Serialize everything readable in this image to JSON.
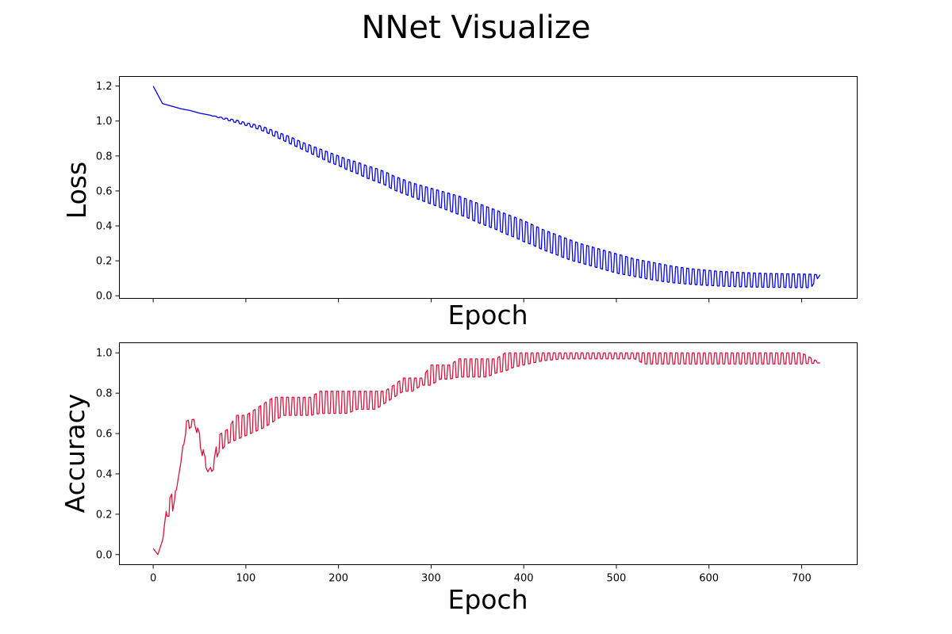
{
  "figure": {
    "title": "NNet Visualize"
  },
  "chart_data": [
    {
      "type": "line",
      "name": "loss-chart",
      "title": "",
      "xlabel": "Epoch",
      "ylabel": "Loss",
      "x_ticks": [
        0,
        100,
        200,
        300,
        400,
        500,
        600,
        700
      ],
      "x_tick_labels_visible": false,
      "y_ticks": [
        0.0,
        0.2,
        0.4,
        0.6,
        0.8,
        1.0,
        1.2
      ],
      "y_tick_labels": [
        "0.0",
        "0.2",
        "0.4",
        "0.6",
        "0.8",
        "1.0",
        "1.2"
      ],
      "xlim": [
        -36.5,
        760
      ],
      "ylim": [
        -0.015,
        1.255
      ],
      "grid": false,
      "legend": "none",
      "color": "#0000ff",
      "oscillation_period": 6,
      "series": [
        {
          "values_sampled_every_10_epochs": {
            "x": [
              0,
              10,
              20,
              30,
              40,
              50,
              60,
              70,
              80,
              90,
              100,
              110,
              120,
              130,
              140,
              150,
              160,
              170,
              180,
              190,
              200,
              210,
              220,
              230,
              240,
              250,
              260,
              270,
              280,
              290,
              300,
              310,
              320,
              330,
              340,
              350,
              360,
              370,
              380,
              390,
              400,
              410,
              420,
              430,
              440,
              450,
              460,
              470,
              480,
              490,
              500,
              510,
              520,
              530,
              540,
              550,
              560,
              570,
              580,
              590,
              600,
              610,
              620,
              630,
              640,
              650,
              660,
              670,
              680,
              690,
              700,
              710,
              720
            ],
            "upper": [
              1.2,
              1.1,
              1.085,
              1.07,
              1.06,
              1.045,
              1.035,
              1.025,
              1.015,
              1.005,
              0.99,
              0.98,
              0.965,
              0.945,
              0.925,
              0.905,
              0.88,
              0.86,
              0.84,
              0.82,
              0.8,
              0.78,
              0.765,
              0.745,
              0.73,
              0.71,
              0.685,
              0.665,
              0.645,
              0.63,
              0.615,
              0.6,
              0.585,
              0.57,
              0.55,
              0.53,
              0.51,
              0.49,
              0.47,
              0.45,
              0.43,
              0.405,
              0.38,
              0.36,
              0.34,
              0.32,
              0.3,
              0.285,
              0.27,
              0.255,
              0.24,
              0.225,
              0.21,
              0.2,
              0.19,
              0.18,
              0.17,
              0.162,
              0.155,
              0.15,
              0.145,
              0.14,
              0.137,
              0.134,
              0.132,
              0.13,
              0.128,
              0.127,
              0.126,
              0.125,
              0.124,
              0.123,
              0.12
            ],
            "lower": [
              1.2,
              1.1,
              1.085,
              1.07,
              1.06,
              1.045,
              1.035,
              1.02,
              1.005,
              0.99,
              0.975,
              0.96,
              0.94,
              0.915,
              0.89,
              0.865,
              0.84,
              0.815,
              0.79,
              0.765,
              0.745,
              0.72,
              0.7,
              0.675,
              0.655,
              0.635,
              0.605,
              0.585,
              0.565,
              0.545,
              0.525,
              0.505,
              0.485,
              0.465,
              0.445,
              0.42,
              0.4,
              0.38,
              0.355,
              0.335,
              0.31,
              0.29,
              0.265,
              0.245,
              0.225,
              0.205,
              0.19,
              0.175,
              0.16,
              0.145,
              0.13,
              0.12,
              0.11,
              0.1,
              0.09,
              0.082,
              0.075,
              0.07,
              0.066,
              0.062,
              0.059,
              0.056,
              0.054,
              0.052,
              0.051,
              0.05,
              0.049,
              0.048,
              0.048,
              0.047,
              0.047,
              0.046,
              0.12
            ]
          }
        }
      ]
    },
    {
      "type": "line",
      "name": "accuracy-chart",
      "title": "",
      "xlabel": "Epoch",
      "ylabel": "Accuracy",
      "x_ticks": [
        0,
        100,
        200,
        300,
        400,
        500,
        600,
        700
      ],
      "x_tick_labels": [
        "0",
        "100",
        "200",
        "300",
        "400",
        "500",
        "600",
        "700"
      ],
      "y_ticks": [
        0.0,
        0.2,
        0.4,
        0.6,
        0.8,
        1.0
      ],
      "y_tick_labels": [
        "0.0",
        "0.2",
        "0.4",
        "0.6",
        "0.8",
        "1.0"
      ],
      "xlim": [
        -36.5,
        760
      ],
      "ylim": [
        -0.05,
        1.05
      ],
      "grid": false,
      "legend": "none",
      "color": "#dc143c",
      "oscillation_period": 6,
      "series": [
        {
          "values_sampled_every_10_epochs": {
            "x": [
              0,
              5,
              10,
              15,
              20,
              25,
              30,
              35,
              40,
              45,
              50,
              55,
              60,
              65,
              70,
              80,
              90,
              100,
              110,
              120,
              130,
              140,
              150,
              160,
              170,
              180,
              190,
              200,
              210,
              220,
              230,
              240,
              250,
              260,
              270,
              280,
              290,
              300,
              310,
              320,
              330,
              340,
              350,
              360,
              370,
              380,
              390,
              400,
              420,
              440,
              460,
              480,
              500,
              520,
              530,
              540,
              560,
              580,
              600,
              620,
              640,
              660,
              680,
              700,
              720
            ],
            "upper": [
              0.03,
              0.0,
              0.07,
              0.25,
              0.3,
              0.32,
              0.46,
              0.66,
              0.67,
              0.67,
              0.6,
              0.5,
              0.42,
              0.45,
              0.59,
              0.62,
              0.69,
              0.69,
              0.72,
              0.75,
              0.78,
              0.78,
              0.78,
              0.78,
              0.78,
              0.81,
              0.81,
              0.81,
              0.81,
              0.81,
              0.81,
              0.81,
              0.81,
              0.84,
              0.875,
              0.875,
              0.875,
              0.94,
              0.94,
              0.94,
              0.97,
              0.97,
              0.97,
              0.97,
              0.97,
              1.0,
              1.0,
              1.0,
              1.0,
              1.0,
              1.0,
              1.0,
              1.0,
              1.0,
              1.0,
              1.0,
              1.0,
              1.0,
              1.0,
              1.0,
              1.0,
              1.0,
              1.0,
              1.0,
              0.95
            ],
            "lower": [
              0.03,
              0.0,
              0.07,
              0.19,
              0.19,
              0.32,
              0.46,
              0.6,
              0.63,
              0.64,
              0.55,
              0.45,
              0.4,
              0.42,
              0.5,
              0.55,
              0.57,
              0.59,
              0.61,
              0.63,
              0.66,
              0.69,
              0.69,
              0.69,
              0.69,
              0.7,
              0.7,
              0.7,
              0.7,
              0.72,
              0.72,
              0.72,
              0.75,
              0.78,
              0.81,
              0.81,
              0.84,
              0.84,
              0.87,
              0.87,
              0.88,
              0.88,
              0.88,
              0.88,
              0.9,
              0.91,
              0.93,
              0.94,
              0.96,
              0.97,
              0.97,
              0.97,
              0.97,
              0.97,
              0.945,
              0.945,
              0.945,
              0.945,
              0.945,
              0.945,
              0.945,
              0.945,
              0.945,
              0.945,
              0.95
            ]
          }
        }
      ]
    }
  ]
}
